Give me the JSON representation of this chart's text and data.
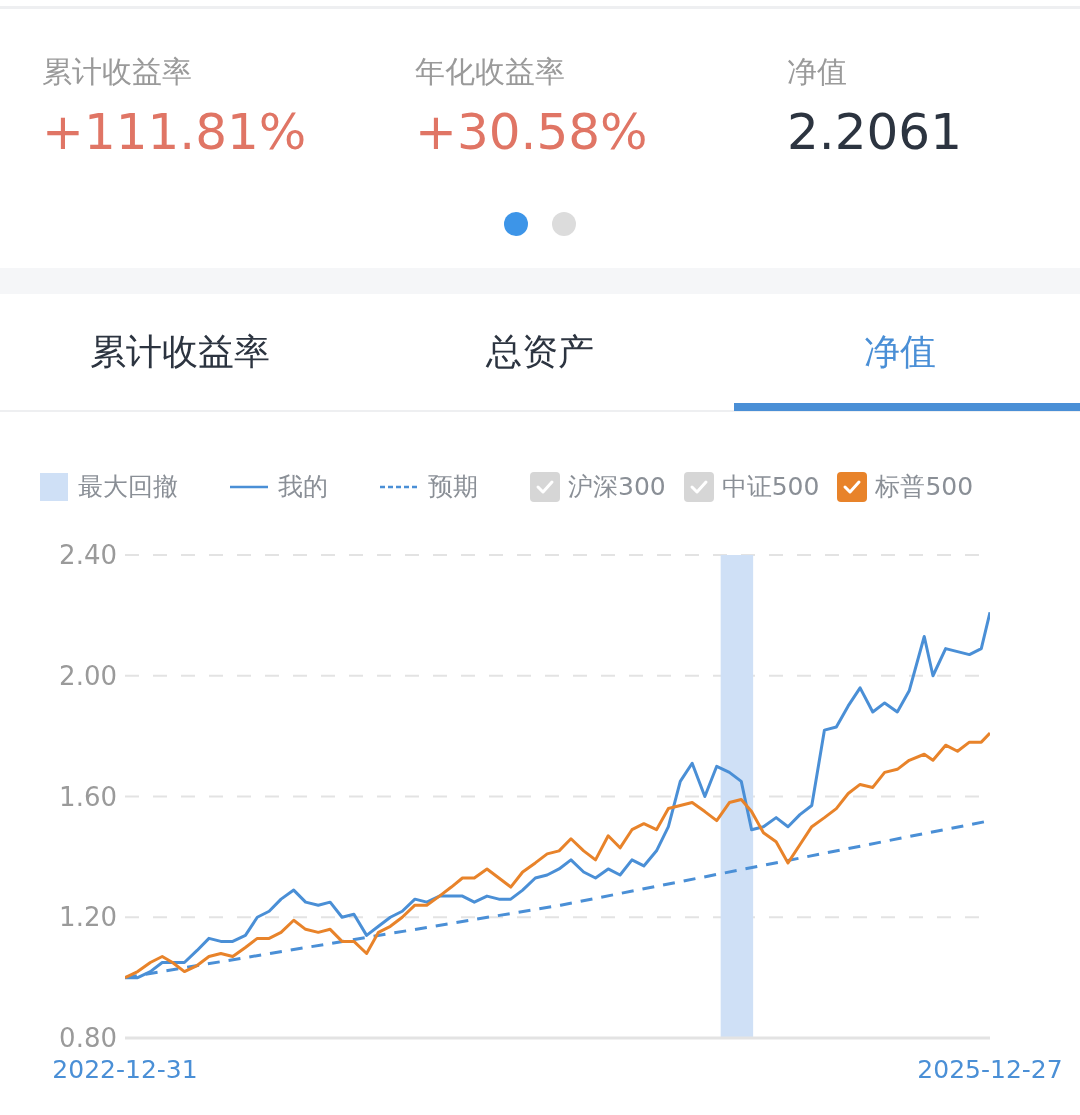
{
  "chart_data": [
    {
      "type": "other",
      "annotations": [
        "累计收益率",
        "+111.81%",
        "年化收益率",
        "+30.58%",
        "净值",
        "2.2061",
        "累计收益率",
        "总资产",
        "净值"
      ]
    },
    {
      "type": "line",
      "marker": "none",
      "grid": "y",
      "legend": "top",
      "x": [
        "2022-12-31",
        "2023-01-16",
        "2023-02-01",
        "2023-02-16",
        "2023-03-01",
        "2023-03-16",
        "2023-04-01",
        "2023-04-16",
        "2023-05-01",
        "2023-05-16",
        "2023-06-01",
        "2023-06-16",
        "2023-07-01",
        "2023-07-16",
        "2023-08-01",
        "2023-08-16",
        "2023-09-01",
        "2023-09-16",
        "2023-10-01",
        "2023-10-16",
        "2023-11-01",
        "2023-11-16",
        "2023-12-01",
        "2023-12-16",
        "2024-01-01",
        "2024-01-16",
        "2024-02-01",
        "2024-02-16",
        "2024-03-01",
        "2024-03-16",
        "2024-04-01",
        "2024-04-16",
        "2024-05-01",
        "2024-05-16",
        "2024-06-01",
        "2024-06-16",
        "2024-07-01",
        "2024-07-16",
        "2024-08-01",
        "2024-08-16",
        "2024-09-01",
        "2024-09-16",
        "2024-10-01",
        "2024-10-16",
        "2024-11-01",
        "2024-11-16",
        "2024-12-01",
        "2024-12-16",
        "2025-01-01",
        "2025-01-16",
        "2025-02-01",
        "2025-02-16",
        "2025-03-01",
        "2025-03-16",
        "2025-04-01",
        "2025-04-16",
        "2025-05-01",
        "2025-05-16",
        "2025-06-01",
        "2025-06-16",
        "2025-07-01",
        "2025-07-16",
        "2025-08-01",
        "2025-08-16",
        "2025-09-01",
        "2025-09-16",
        "2025-10-05",
        "2025-10-16",
        "2025-11-01",
        "2025-11-16",
        "2025-12-01",
        "2025-12-16",
        "2025-12-27"
      ],
      "series": [
        {
          "name": "我的",
          "color": "#4a8fd6",
          "line_style": "solid",
          "values": [
            1.0,
            1.0,
            1.02,
            1.05,
            1.05,
            1.05,
            1.09,
            1.13,
            1.12,
            1.12,
            1.14,
            1.2,
            1.22,
            1.26,
            1.29,
            1.25,
            1.24,
            1.25,
            1.2,
            1.21,
            1.14,
            1.17,
            1.2,
            1.22,
            1.26,
            1.25,
            1.27,
            1.27,
            1.27,
            1.25,
            1.27,
            1.26,
            1.26,
            1.29,
            1.33,
            1.34,
            1.36,
            1.39,
            1.35,
            1.33,
            1.36,
            1.34,
            1.39,
            1.37,
            1.42,
            1.5,
            1.65,
            1.71,
            1.6,
            1.7,
            1.68,
            1.65,
            1.49,
            1.5,
            1.53,
            1.5,
            1.54,
            1.57,
            1.82,
            1.83,
            1.9,
            1.96,
            1.88,
            1.91,
            1.88,
            1.95,
            2.13,
            2.0,
            2.09,
            2.08,
            2.07,
            2.09,
            2.21
          ]
        },
        {
          "name": "预期",
          "color": "#4a8fd6",
          "line_style": "dashed",
          "x": [
            "2022-12-31",
            "2024-07-03",
            "2025-12-27"
          ],
          "values": [
            1.0,
            1.24,
            1.52
          ]
        },
        {
          "name": "沪深300",
          "color": "#d6d6d6",
          "values": [
            null,
            null,
            null,
            null,
            null,
            null,
            null,
            null,
            null,
            null,
            null,
            null,
            null,
            null,
            null,
            null,
            null,
            null,
            null,
            null,
            null,
            null,
            null,
            null,
            null,
            null,
            null,
            null,
            null,
            null,
            null,
            null,
            null,
            null,
            null,
            null,
            null,
            null,
            null,
            null,
            null,
            null,
            null,
            null,
            null,
            null,
            null,
            null,
            null,
            null,
            null,
            null,
            null,
            null,
            null,
            null,
            null,
            null,
            null,
            null,
            null,
            null,
            null,
            null,
            null,
            null,
            null,
            null,
            null,
            null,
            null,
            null,
            null
          ]
        },
        {
          "name": "中证500",
          "color": "#d6d6d6",
          "values": [
            null,
            null,
            null,
            null,
            null,
            null,
            null,
            null,
            null,
            null,
            null,
            null,
            null,
            null,
            null,
            null,
            null,
            null,
            null,
            null,
            null,
            null,
            null,
            null,
            null,
            null,
            null,
            null,
            null,
            null,
            null,
            null,
            null,
            null,
            null,
            null,
            null,
            null,
            null,
            null,
            null,
            null,
            null,
            null,
            null,
            null,
            null,
            null,
            null,
            null,
            null,
            null,
            null,
            null,
            null,
            null,
            null,
            null,
            null,
            null,
            null,
            null,
            null,
            null,
            null,
            null,
            null,
            null,
            null,
            null,
            null,
            null,
            null
          ]
        },
        {
          "name": "标普500",
          "color": "#e8832a",
          "values": [
            1.0,
            1.02,
            1.05,
            1.07,
            1.05,
            1.02,
            1.04,
            1.07,
            1.08,
            1.07,
            1.1,
            1.13,
            1.13,
            1.15,
            1.19,
            1.16,
            1.15,
            1.16,
            1.12,
            1.12,
            1.08,
            1.15,
            1.17,
            1.2,
            1.24,
            1.24,
            1.27,
            1.3,
            1.33,
            1.33,
            1.36,
            1.33,
            1.3,
            1.35,
            1.38,
            1.41,
            1.42,
            1.46,
            1.42,
            1.39,
            1.47,
            1.43,
            1.49,
            1.51,
            1.49,
            1.56,
            1.57,
            1.58,
            1.55,
            1.52,
            1.58,
            1.59,
            1.55,
            1.48,
            1.45,
            1.38,
            1.44,
            1.5,
            1.53,
            1.56,
            1.61,
            1.64,
            1.63,
            1.68,
            1.69,
            1.72,
            1.74,
            1.72,
            1.77,
            1.75,
            1.78,
            1.78,
            1.81
          ]
        }
      ],
      "bands": [
        {
          "axis": "x",
          "from": "2025-01-21",
          "to": "2025-03-03",
          "label": "最大回撤",
          "color": "#cfe0f6"
        }
      ],
      "xlim": [
        "2022-12-31",
        "2025-12-27"
      ],
      "xticks": [
        "2022-12-31",
        "2025-12-27"
      ],
      "ylim": [
        0.8,
        2.4
      ],
      "yticks": [
        {
          "value": 0.8,
          "label": "0.80"
        },
        {
          "value": 1.2,
          "label": "1.20"
        },
        {
          "value": 1.6,
          "label": "1.60"
        },
        {
          "value": 2.0,
          "label": "2.00"
        },
        {
          "value": 2.4,
          "label": "2.40"
        }
      ]
    }
  ]
}
